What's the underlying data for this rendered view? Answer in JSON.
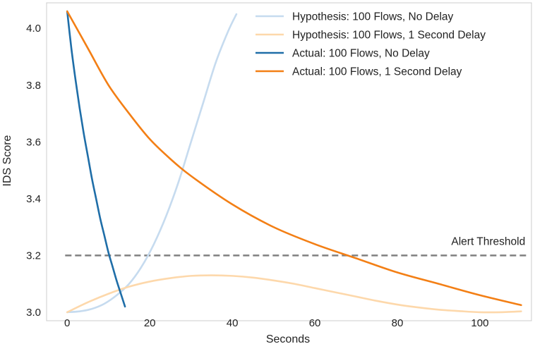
{
  "chart_data": {
    "type": "line",
    "title": "",
    "xlabel": "Seconds",
    "ylabel": "IDS Score",
    "xlim": [
      -5,
      112.5
    ],
    "ylim": [
      2.97,
      4.09
    ],
    "x_ticks": [
      0,
      20,
      40,
      60,
      80,
      100
    ],
    "y_ticks": [
      3.0,
      3.2,
      3.4,
      3.6,
      3.8,
      4.0
    ],
    "x_tick_labels": [
      "0",
      "20",
      "40",
      "60",
      "80",
      "100"
    ],
    "y_tick_labels": [
      "3.0",
      "3.2",
      "3.4",
      "3.6",
      "3.8",
      "4.0"
    ],
    "grid": false,
    "legend_position": "top-right",
    "series": [
      {
        "name": "Hypothesis: 100 Flows, No Delay",
        "color": "#c6dbef",
        "points": [
          [
            0,
            3.0
          ],
          [
            3,
            3.003
          ],
          [
            6,
            3.012
          ],
          [
            9,
            3.03
          ],
          [
            12,
            3.06
          ],
          [
            15,
            3.1
          ],
          [
            18,
            3.16
          ],
          [
            21,
            3.24
          ],
          [
            24,
            3.34
          ],
          [
            27,
            3.46
          ],
          [
            30,
            3.6
          ],
          [
            33,
            3.74
          ],
          [
            36,
            3.88
          ],
          [
            39,
            3.99
          ],
          [
            41,
            4.05
          ]
        ]
      },
      {
        "name": "Hypothesis: 100 Flows, 1 Second Delay",
        "color": "#fdd8ab",
        "points": [
          [
            0,
            3.0
          ],
          [
            5,
            3.035
          ],
          [
            10,
            3.065
          ],
          [
            15,
            3.09
          ],
          [
            20,
            3.108
          ],
          [
            25,
            3.12
          ],
          [
            30,
            3.128
          ],
          [
            35,
            3.13
          ],
          [
            40,
            3.128
          ],
          [
            45,
            3.122
          ],
          [
            50,
            3.112
          ],
          [
            55,
            3.1
          ],
          [
            60,
            3.085
          ],
          [
            65,
            3.07
          ],
          [
            70,
            3.055
          ],
          [
            75,
            3.04
          ],
          [
            80,
            3.027
          ],
          [
            85,
            3.017
          ],
          [
            90,
            3.009
          ],
          [
            95,
            3.004
          ],
          [
            100,
            3.0
          ],
          [
            105,
            3.0
          ],
          [
            110,
            3.003
          ]
        ]
      },
      {
        "name": "Actual: 100 Flows, No Delay",
        "color": "#1f6ea8",
        "points": [
          [
            0,
            4.06
          ],
          [
            1,
            3.93
          ],
          [
            2,
            3.82
          ],
          [
            3,
            3.72
          ],
          [
            4,
            3.63
          ],
          [
            5,
            3.55
          ],
          [
            6,
            3.47
          ],
          [
            7,
            3.4
          ],
          [
            8,
            3.33
          ],
          [
            9,
            3.27
          ],
          [
            10,
            3.21
          ],
          [
            11,
            3.16
          ],
          [
            12,
            3.11
          ],
          [
            13,
            3.065
          ],
          [
            14,
            3.02
          ]
        ]
      },
      {
        "name": "Actual: 100 Flows, 1 Second Delay",
        "color": "#f37f15",
        "points": [
          [
            0,
            4.06
          ],
          [
            5,
            3.93
          ],
          [
            10,
            3.8
          ],
          [
            15,
            3.7
          ],
          [
            20,
            3.61
          ],
          [
            25,
            3.54
          ],
          [
            30,
            3.48
          ],
          [
            40,
            3.38
          ],
          [
            50,
            3.3
          ],
          [
            60,
            3.24
          ],
          [
            70,
            3.19
          ],
          [
            80,
            3.14
          ],
          [
            90,
            3.1
          ],
          [
            100,
            3.06
          ],
          [
            110,
            3.025
          ]
        ]
      }
    ],
    "threshold": {
      "label": "Alert Threshold",
      "value": 3.2,
      "color": "#808080"
    }
  }
}
